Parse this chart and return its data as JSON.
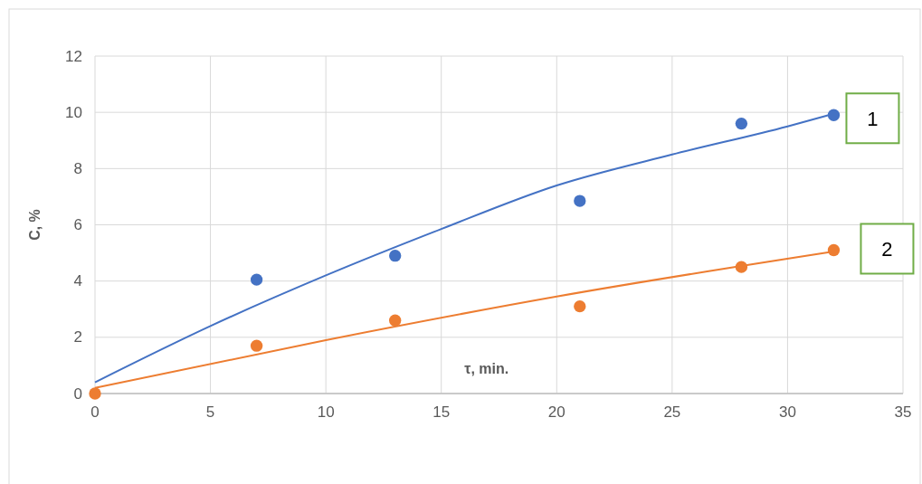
{
  "chart_data": {
    "type": "scatter",
    "xlabel": "τ, min.",
    "ylabel": "C, %",
    "xlim": [
      0,
      35
    ],
    "ylim": [
      0,
      12
    ],
    "xticks": [
      0,
      5,
      10,
      15,
      20,
      25,
      30,
      35
    ],
    "yticks": [
      0,
      2,
      4,
      6,
      8,
      10,
      12
    ],
    "grid": true,
    "series": [
      {
        "type": "line",
        "color": "#4472c4",
        "x": [
          0,
          5,
          10,
          15,
          20,
          25,
          30,
          32
        ],
        "values": [
          0.4,
          2.4,
          4.2,
          5.85,
          7.4,
          8.5,
          9.5,
          9.95
        ]
      },
      {
        "type": "line",
        "color": "#ed7d31",
        "x": [
          0,
          10,
          20,
          32
        ],
        "values": [
          0.2,
          1.9,
          3.45,
          5.05
        ]
      },
      {
        "name": "1",
        "color": "#4472c4",
        "marker": "circle",
        "x": [
          7,
          13,
          21,
          28,
          32
        ],
        "values": [
          4.05,
          4.9,
          6.85,
          9.6,
          9.9
        ]
      },
      {
        "name": "2",
        "color": "#ed7d31",
        "marker": "circle",
        "x": [
          0,
          7,
          13,
          21,
          28,
          32
        ],
        "values": [
          0,
          1.7,
          2.6,
          3.1,
          4.5,
          5.1
        ]
      }
    ]
  }
}
